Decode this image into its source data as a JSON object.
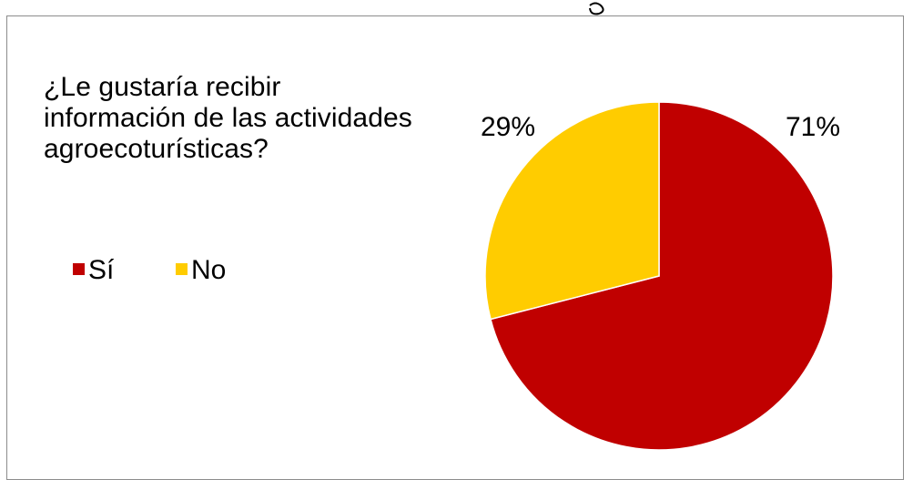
{
  "chart_data": {
    "type": "pie",
    "title": "¿Le gustaría recibir información de las actividades agroecoturísticas?",
    "title_lines": [
      "¿Le gustaría recibir",
      "información de las actividades",
      "agroecoturísticas?"
    ],
    "categories": [
      "Sí",
      "No"
    ],
    "values": [
      71,
      29
    ],
    "value_labels": [
      "71%",
      "29%"
    ],
    "colors": [
      "#c00000",
      "#ffcc00"
    ],
    "legend_position": "left",
    "start_angle_deg": 0,
    "direction": "clockwise"
  }
}
